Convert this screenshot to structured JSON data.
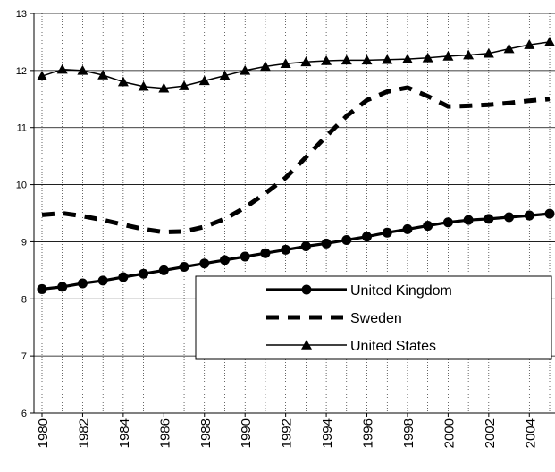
{
  "chart_data": {
    "type": "line",
    "x": [
      1980,
      1981,
      1982,
      1983,
      1984,
      1985,
      1986,
      1987,
      1988,
      1989,
      1990,
      1991,
      1992,
      1993,
      1994,
      1995,
      1996,
      1997,
      1998,
      1999,
      2000,
      2001,
      2002,
      2003,
      2004,
      2005
    ],
    "x_tick_labels": [
      "1980",
      "1982",
      "1984",
      "1986",
      "1988",
      "1990",
      "1992",
      "1994",
      "1996",
      "1998",
      "2000",
      "2002",
      "2004"
    ],
    "y_tick_labels": [
      "6",
      "7",
      "8",
      "9",
      "10",
      "11",
      "12",
      "13"
    ],
    "ylim": [
      6,
      13
    ],
    "grid": "vertical",
    "legend": {
      "placement": "bottom-right",
      "entries": [
        "United Kingdom",
        "Sweden",
        "United States"
      ]
    },
    "series": [
      {
        "name": "United Kingdom",
        "style": "thick-line-circle-markers",
        "color": "#000000",
        "values": [
          8.17,
          8.21,
          8.27,
          8.32,
          8.38,
          8.44,
          8.5,
          8.56,
          8.62,
          8.68,
          8.74,
          8.8,
          8.86,
          8.92,
          8.97,
          9.03,
          9.09,
          9.16,
          9.22,
          9.28,
          9.34,
          9.38,
          9.4,
          9.43,
          9.46,
          9.49
        ]
      },
      {
        "name": "Sweden",
        "style": "thick-dashed",
        "color": "#000000",
        "values": [
          9.47,
          9.5,
          9.45,
          9.38,
          9.3,
          9.22,
          9.17,
          9.18,
          9.26,
          9.4,
          9.6,
          9.85,
          10.12,
          10.48,
          10.85,
          11.2,
          11.48,
          11.63,
          11.7,
          11.55,
          11.37,
          11.38,
          11.4,
          11.43,
          11.47,
          11.5
        ]
      },
      {
        "name": "United States",
        "style": "thin-line-triangle-markers",
        "color": "#000000",
        "values": [
          11.9,
          12.02,
          12.0,
          11.92,
          11.8,
          11.72,
          11.69,
          11.73,
          11.82,
          11.91,
          12.0,
          12.07,
          12.12,
          12.15,
          12.17,
          12.18,
          12.18,
          12.19,
          12.2,
          12.22,
          12.25,
          12.27,
          12.3,
          12.38,
          12.45,
          12.5
        ]
      }
    ]
  }
}
